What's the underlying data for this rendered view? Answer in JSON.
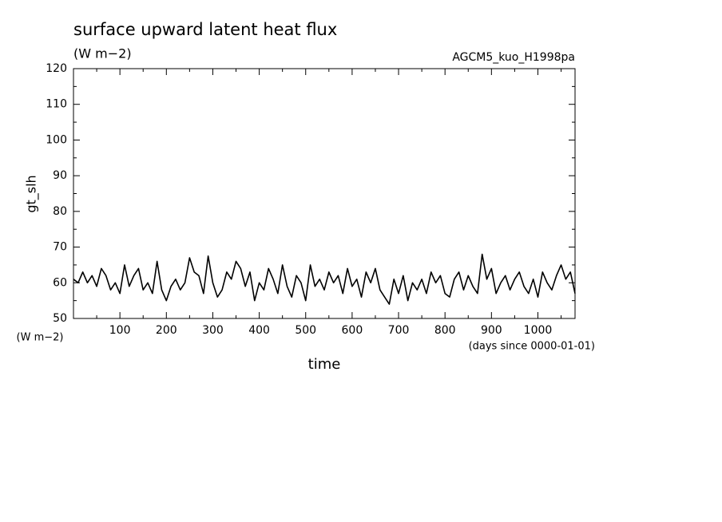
{
  "chart_data": {
    "type": "line",
    "title": "surface upward latent heat flux",
    "subtitle": "(W m−2)",
    "annotation": "AGCM5_kuo_H1998pa",
    "y_label": "gt_slh",
    "y_unit": "(W m−2)",
    "x_label": "time",
    "x_unit": "(days since 0000-01-01)",
    "xlim": [
      0,
      1080
    ],
    "ylim": [
      50,
      120
    ],
    "xticks": [
      100,
      200,
      300,
      400,
      500,
      600,
      700,
      800,
      900,
      1000
    ],
    "yticks": [
      50,
      60,
      70,
      80,
      90,
      100,
      110,
      120
    ],
    "xminorticks": [
      50,
      150,
      250,
      350,
      450,
      550,
      650,
      750,
      850,
      950,
      1050
    ],
    "yminorticks": [
      55,
      65,
      75,
      85,
      95,
      105,
      115
    ],
    "grid": false,
    "series": [
      {
        "name": "gt_slh",
        "color": "#000000",
        "x": [
          0,
          10,
          20,
          30,
          40,
          50,
          60,
          70,
          80,
          90,
          100,
          110,
          120,
          130,
          140,
          150,
          160,
          170,
          180,
          190,
          200,
          210,
          220,
          230,
          240,
          250,
          260,
          270,
          280,
          290,
          300,
          310,
          320,
          330,
          340,
          350,
          360,
          370,
          380,
          390,
          400,
          410,
          420,
          430,
          440,
          450,
          460,
          470,
          480,
          490,
          500,
          510,
          520,
          530,
          540,
          550,
          560,
          570,
          580,
          590,
          600,
          610,
          620,
          630,
          640,
          650,
          660,
          670,
          680,
          690,
          700,
          710,
          720,
          730,
          740,
          750,
          760,
          770,
          780,
          790,
          800,
          810,
          820,
          830,
          840,
          850,
          860,
          870,
          880,
          890,
          900,
          910,
          920,
          930,
          940,
          950,
          960,
          970,
          980,
          990,
          1000,
          1010,
          1020,
          1030,
          1040,
          1050,
          1060,
          1070,
          1080
        ],
        "values": [
          61,
          60,
          63,
          60,
          62,
          59,
          64,
          62,
          58,
          60,
          57,
          65,
          59,
          62,
          64,
          58,
          60,
          57,
          66,
          58,
          55,
          59,
          61,
          58,
          60,
          67,
          63,
          62,
          57,
          67.5,
          60,
          56,
          58,
          63,
          61,
          66,
          64,
          59,
          63,
          55,
          60,
          58,
          64,
          61,
          57,
          65,
          59,
          56,
          62,
          60,
          55,
          65,
          59,
          61,
          58,
          63,
          60,
          62,
          57,
          64,
          59,
          61,
          56,
          63,
          60,
          64,
          58,
          56,
          54,
          61,
          57,
          62,
          55,
          60,
          58,
          61,
          57,
          63,
          60,
          62,
          57,
          56,
          61,
          63,
          58,
          62,
          59,
          57,
          68,
          61,
          64,
          57,
          60,
          62,
          58,
          61,
          63,
          59,
          57,
          61,
          56,
          63,
          60,
          58,
          62,
          65,
          61,
          63,
          57
        ]
      }
    ]
  }
}
